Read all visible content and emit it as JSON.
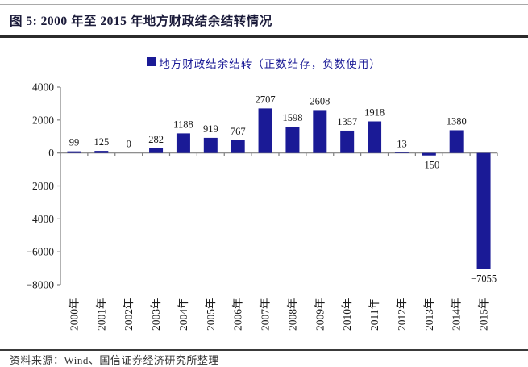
{
  "figure": {
    "title": "图 5: 2000 年至 2015 年地方财政结余结转情况"
  },
  "chart_data": {
    "type": "bar",
    "title": "",
    "xlabel": "",
    "ylabel": "",
    "legend": "地方财政结余结转（正数结存，负数使用）",
    "legend_position": "top-center",
    "categories": [
      "2000年",
      "2001年",
      "2002年",
      "2003年",
      "2004年",
      "2005年",
      "2006年",
      "2007年",
      "2008年",
      "2009年",
      "2010年",
      "2011年",
      "2012年",
      "2013年",
      "2014年",
      "2015年"
    ],
    "values": [
      99,
      125,
      0,
      282,
      1188,
      919,
      767,
      2707,
      1598,
      2608,
      1357,
      1918,
      13,
      -150,
      1380,
      -7055
    ],
    "ylim": [
      -8000,
      4000
    ],
    "yticks": [
      4000,
      2000,
      0,
      -2000,
      -4000,
      -6000,
      -8000
    ],
    "grid": false,
    "bar_color": "#1a1a96",
    "axis_color": "#7f7f7f",
    "value_label_color": "#1a1a1a",
    "tick_label_color": "#1a1a1a"
  },
  "footer": {
    "source": "资料来源：Wind、国信证券经济研究所整理"
  }
}
